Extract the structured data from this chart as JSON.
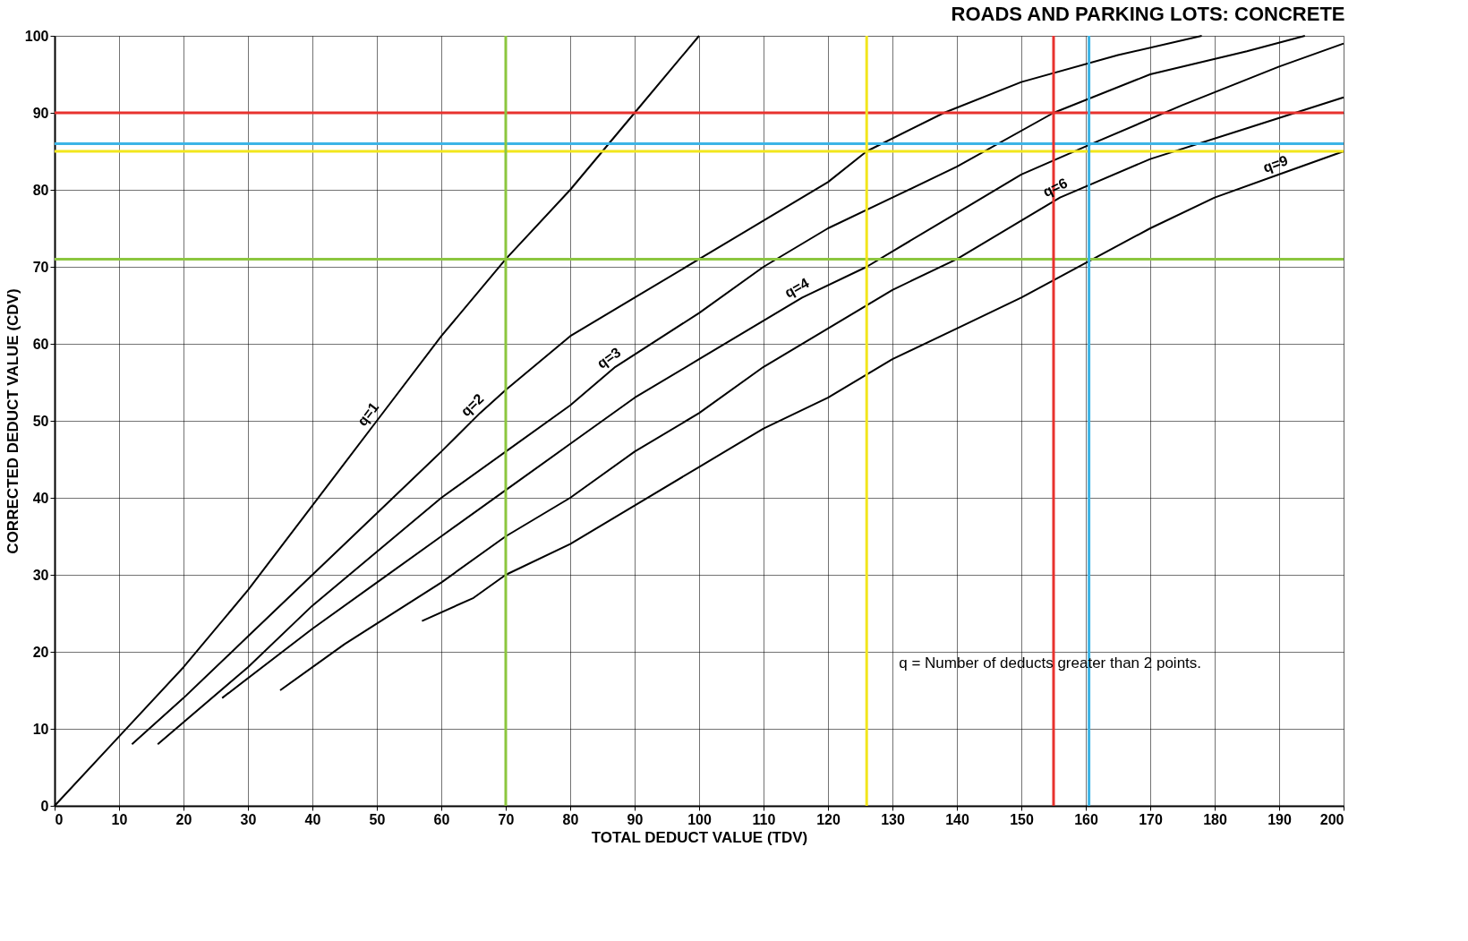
{
  "chart_data": {
    "type": "line",
    "title": "ROADS AND PARKING LOTS:  CONCRETE",
    "xlabel": "TOTAL DEDUCT VALUE (TDV)",
    "ylabel": "CORRECTED DEDUCT VALUE (CDV)",
    "xlim": [
      0,
      200
    ],
    "ylim": [
      0,
      100
    ],
    "xticks": [
      0,
      10,
      20,
      30,
      40,
      50,
      60,
      70,
      80,
      90,
      100,
      110,
      120,
      130,
      140,
      150,
      160,
      170,
      180,
      190,
      200
    ],
    "yticks": [
      0,
      10,
      20,
      30,
      40,
      50,
      60,
      70,
      80,
      90,
      100
    ],
    "grid": true,
    "marker": "none",
    "line_style": "solid",
    "series": [
      {
        "name": "q=1",
        "color": "#000000",
        "x": [
          0,
          10,
          20,
          30,
          40,
          50,
          60,
          70,
          80,
          90,
          100
        ],
        "values": [
          0,
          9,
          18,
          28,
          39,
          50,
          61,
          71,
          80,
          90,
          100
        ]
      },
      {
        "name": "q=2",
        "color": "#000000",
        "x": [
          12,
          20,
          30,
          40,
          50,
          60,
          66,
          70,
          80,
          90,
          100,
          110,
          120,
          126,
          138,
          150,
          165,
          178
        ],
        "values": [
          8,
          14,
          22,
          30,
          38,
          46,
          51,
          54,
          61,
          66,
          71,
          76,
          81,
          85,
          90,
          94,
          97.5,
          100
        ]
      },
      {
        "name": "q=3",
        "color": "#000000",
        "x": [
          16,
          30,
          40,
          50,
          60,
          70,
          80,
          87,
          100,
          110,
          120,
          130,
          140,
          155,
          170,
          185,
          194
        ],
        "values": [
          8,
          18,
          26,
          33,
          40,
          46,
          52,
          57,
          64,
          70,
          75,
          79,
          83,
          90,
          95,
          98,
          100
        ]
      },
      {
        "name": "q=4",
        "color": "#000000",
        "x": [
          26,
          40,
          50,
          60,
          70,
          80,
          90,
          100,
          116,
          126,
          140,
          150,
          161,
          175,
          190,
          200
        ],
        "values": [
          14,
          23,
          29,
          35,
          41,
          47,
          53,
          58,
          66,
          70,
          77,
          82,
          86,
          91,
          96,
          99
        ]
      },
      {
        "name": "q=6",
        "color": "#000000",
        "x": [
          35,
          45,
          60,
          70,
          80,
          90,
          100,
          110,
          120,
          130,
          140,
          150,
          156,
          170,
          185,
          200
        ],
        "values": [
          15,
          21,
          29,
          35,
          40,
          46,
          51,
          57,
          62,
          67,
          71,
          76,
          79,
          84,
          88,
          92
        ]
      },
      {
        "name": "q=9",
        "color": "#000000",
        "x": [
          57,
          65,
          70,
          80,
          90,
          100,
          110,
          120,
          130,
          140,
          150,
          160,
          170,
          180,
          190,
          200
        ],
        "values": [
          24,
          27,
          30,
          34,
          39,
          44,
          49,
          53,
          58,
          62,
          66,
          70.5,
          75,
          79,
          82,
          85
        ]
      }
    ],
    "ref_lines": [
      {
        "axis": "y",
        "value": 90,
        "color": "#e8322e"
      },
      {
        "axis": "y",
        "value": 86,
        "color": "#3cb4e6"
      },
      {
        "axis": "y",
        "value": 85,
        "color": "#f2e61c"
      },
      {
        "axis": "y",
        "value": 71,
        "color": "#8cc63f"
      },
      {
        "axis": "x",
        "value": 70,
        "color": "#8cc63f"
      },
      {
        "axis": "x",
        "value": 126,
        "color": "#f2e61c"
      },
      {
        "axis": "x",
        "value": 155,
        "color": "#e8322e"
      },
      {
        "axis": "x",
        "value": 160.5,
        "color": "#3cb4e6"
      }
    ],
    "annotations": [
      "q = Number of deducts greater than 2 points."
    ]
  }
}
